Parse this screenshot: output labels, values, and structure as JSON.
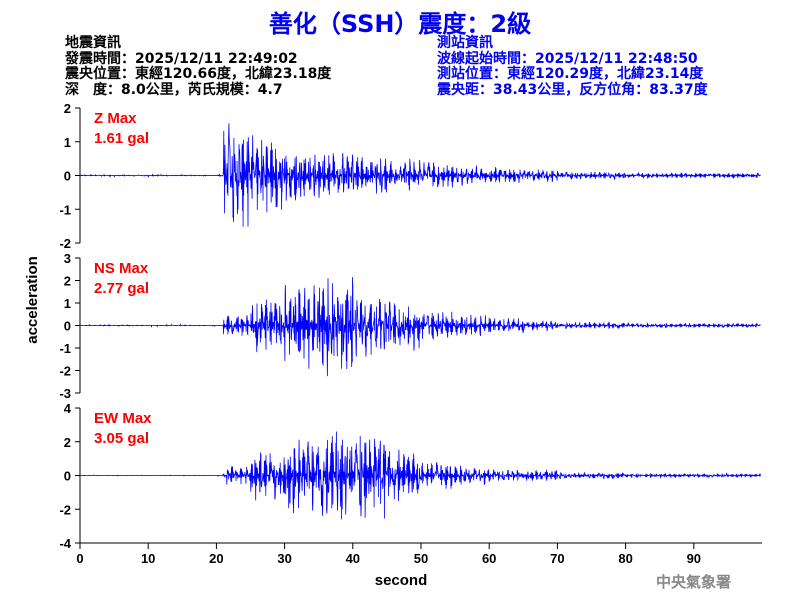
{
  "title": "善化（SSH）震度：2級",
  "quake_info": {
    "heading": "地震資訊",
    "origin_time": "發震時間：2025/12/11 22:49:02",
    "epicenter": "震央位置：東經120.66度，北緯23.18度",
    "depth_mag": "深　度：8.0公里，芮氏規模：4.7"
  },
  "station_info": {
    "heading": "測站資訊",
    "wave_start": "波線起始時間：2025/12/11 22:48:50",
    "location": "測站位置：東經120.29度，北緯23.14度",
    "distance": "震央距：38.43公里，反方位角：83.37度"
  },
  "watermark": "中央氣象署",
  "chart_data": {
    "type": "line",
    "xlabel": "second",
    "ylabel": "acceleration",
    "xlim": [
      0,
      100
    ],
    "xticks": [
      0,
      10,
      20,
      30,
      40,
      50,
      60,
      70,
      80,
      90
    ],
    "line_color": "#0000ff",
    "label_color": "#ff0000",
    "envelope_bins_seconds": [
      0,
      5,
      10,
      15,
      20,
      21,
      25,
      30,
      35,
      40,
      45,
      50,
      55,
      60,
      65,
      70,
      80,
      90
    ],
    "series": [
      {
        "name": "Z Max",
        "max_label": "1.61 gal",
        "ylim": [
          -2,
          2
        ],
        "yticks": [
          2,
          1,
          0,
          -1,
          -2
        ],
        "peak_envelope": [
          0.05,
          0.05,
          0.05,
          0.05,
          0.05,
          1.6,
          1.2,
          0.85,
          0.7,
          0.6,
          0.5,
          0.4,
          0.3,
          0.25,
          0.2,
          0.12,
          0.08,
          0.08
        ]
      },
      {
        "name": "NS Max",
        "max_label": "2.77 gal",
        "ylim": [
          -3,
          3
        ],
        "yticks": [
          3,
          2,
          1,
          0,
          -1,
          -2,
          -3
        ],
        "peak_envelope": [
          0.05,
          0.05,
          0.05,
          0.05,
          0.05,
          0.5,
          1.2,
          2.0,
          2.7,
          1.6,
          1.2,
          0.7,
          0.5,
          0.35,
          0.25,
          0.15,
          0.1,
          0.1
        ]
      },
      {
        "name": "EW Max",
        "max_label": "3.05 gal",
        "ylim": [
          -4,
          4
        ],
        "yticks": [
          4,
          2,
          0,
          -2,
          -4
        ],
        "peak_envelope": [
          0.03,
          0.03,
          0.03,
          0.03,
          0.05,
          0.6,
          1.5,
          2.4,
          3.0,
          2.6,
          1.6,
          0.8,
          0.6,
          0.35,
          0.35,
          0.2,
          0.12,
          0.12
        ]
      }
    ]
  }
}
